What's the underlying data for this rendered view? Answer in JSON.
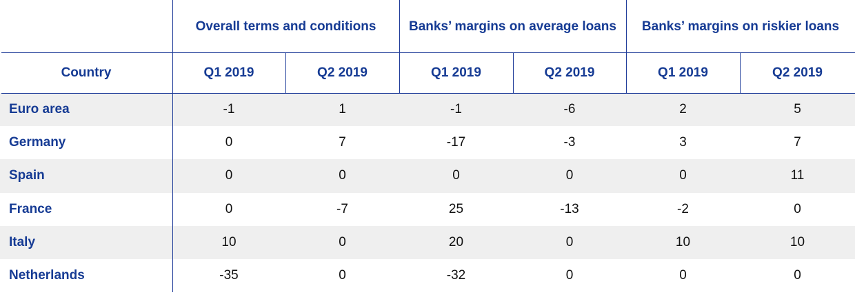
{
  "table": {
    "groups": [
      "Overall terms and conditions",
      "Banks’ margins on average loans",
      "Banks’ margins on riskier loans"
    ],
    "columns": [
      "Country",
      "Q1 2019",
      "Q2 2019",
      "Q1 2019",
      "Q2 2019",
      "Q1 2019",
      "Q2 2019"
    ],
    "rows": [
      [
        "Euro area",
        -1,
        1,
        -1,
        -6,
        2,
        5
      ],
      [
        "Germany",
        0,
        7,
        -17,
        -3,
        3,
        7
      ],
      [
        "Spain",
        0,
        0,
        0,
        0,
        0,
        11
      ],
      [
        "France",
        0,
        -7,
        25,
        -13,
        -2,
        0
      ],
      [
        "Italy",
        10,
        0,
        20,
        0,
        10,
        10
      ],
      [
        "Netherlands",
        -35,
        0,
        -32,
        0,
        0,
        0
      ]
    ]
  }
}
